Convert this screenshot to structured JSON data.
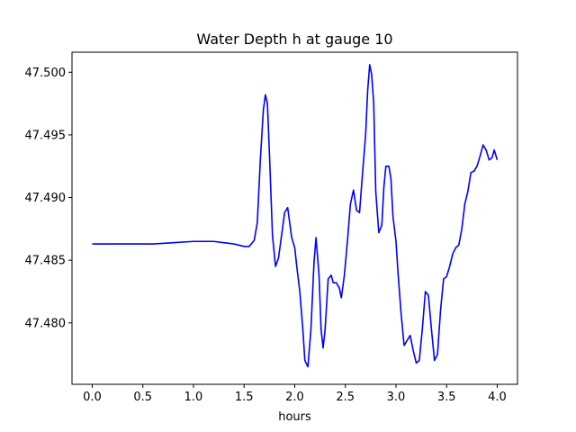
{
  "chart_data": {
    "type": "line",
    "title": "Water Depth h at gauge 10",
    "xlabel": "hours",
    "ylabel": "",
    "xlim": [
      -0.2,
      4.2
    ],
    "ylim": [
      47.4751,
      47.5016
    ],
    "xticks": [
      0.0,
      0.5,
      1.0,
      1.5,
      2.0,
      2.5,
      3.0,
      3.5,
      4.0
    ],
    "xtick_labels": [
      "0.0",
      "0.5",
      "1.0",
      "1.5",
      "2.0",
      "2.5",
      "3.0",
      "3.5",
      "4.0"
    ],
    "yticks": [
      47.48,
      47.485,
      47.49,
      47.495,
      47.5
    ],
    "ytick_labels": [
      "47.480",
      "47.485",
      "47.490",
      "47.495",
      "47.500"
    ],
    "grid": false,
    "series": [
      {
        "color": "#0000ff",
        "x": [
          0.0,
          0.3,
          0.6,
          0.8,
          1.0,
          1.1,
          1.2,
          1.3,
          1.4,
          1.5,
          1.55,
          1.6,
          1.63,
          1.66,
          1.69,
          1.71,
          1.73,
          1.75,
          1.78,
          1.81,
          1.84,
          1.87,
          1.9,
          1.93,
          1.95,
          1.97,
          2.0,
          2.02,
          2.05,
          2.08,
          2.1,
          2.13,
          2.16,
          2.19,
          2.21,
          2.24,
          2.26,
          2.28,
          2.3,
          2.33,
          2.36,
          2.38,
          2.41,
          2.44,
          2.46,
          2.49,
          2.52,
          2.55,
          2.58,
          2.61,
          2.64,
          2.67,
          2.7,
          2.72,
          2.74,
          2.76,
          2.78,
          2.8,
          2.83,
          2.86,
          2.88,
          2.9,
          2.93,
          2.95,
          2.97,
          3.0,
          3.02,
          3.05,
          3.08,
          3.11,
          3.14,
          3.17,
          3.2,
          3.23,
          3.26,
          3.29,
          3.32,
          3.35,
          3.38,
          3.41,
          3.44,
          3.47,
          3.5,
          3.53,
          3.56,
          3.59,
          3.62,
          3.65,
          3.68,
          3.71,
          3.74,
          3.77,
          3.8,
          3.83,
          3.86,
          3.89,
          3.92,
          3.95,
          3.97,
          4.0
        ],
        "y": [
          47.4863,
          47.4863,
          47.4863,
          47.4864,
          47.4865,
          47.4865,
          47.4865,
          47.4864,
          47.4863,
          47.4861,
          47.4861,
          47.4866,
          47.488,
          47.493,
          47.497,
          47.4982,
          47.4975,
          47.4935,
          47.487,
          47.4845,
          47.4852,
          47.487,
          47.4888,
          47.4892,
          47.488,
          47.4868,
          47.486,
          47.4845,
          47.4825,
          47.4795,
          47.477,
          47.4765,
          47.4795,
          47.4848,
          47.4868,
          47.4838,
          47.4795,
          47.478,
          47.4795,
          47.4835,
          47.4838,
          47.4832,
          47.4832,
          47.4828,
          47.482,
          47.4838,
          47.4865,
          47.4895,
          47.4906,
          47.489,
          47.4888,
          47.492,
          47.495,
          47.4985,
          47.5006,
          47.4998,
          47.4975,
          47.4905,
          47.4872,
          47.4878,
          47.4908,
          47.4925,
          47.4925,
          47.4915,
          47.4885,
          47.4865,
          47.484,
          47.4808,
          47.4782,
          47.4786,
          47.479,
          47.4778,
          47.4768,
          47.477,
          47.4795,
          47.4825,
          47.4822,
          47.4795,
          47.477,
          47.4775,
          47.481,
          47.4835,
          47.4837,
          47.4845,
          47.4855,
          47.486,
          47.4862,
          47.4875,
          47.4895,
          47.4905,
          47.492,
          47.4921,
          47.4925,
          47.4933,
          47.4942,
          47.4938,
          47.493,
          47.4932,
          47.4938,
          47.493
        ]
      }
    ]
  }
}
